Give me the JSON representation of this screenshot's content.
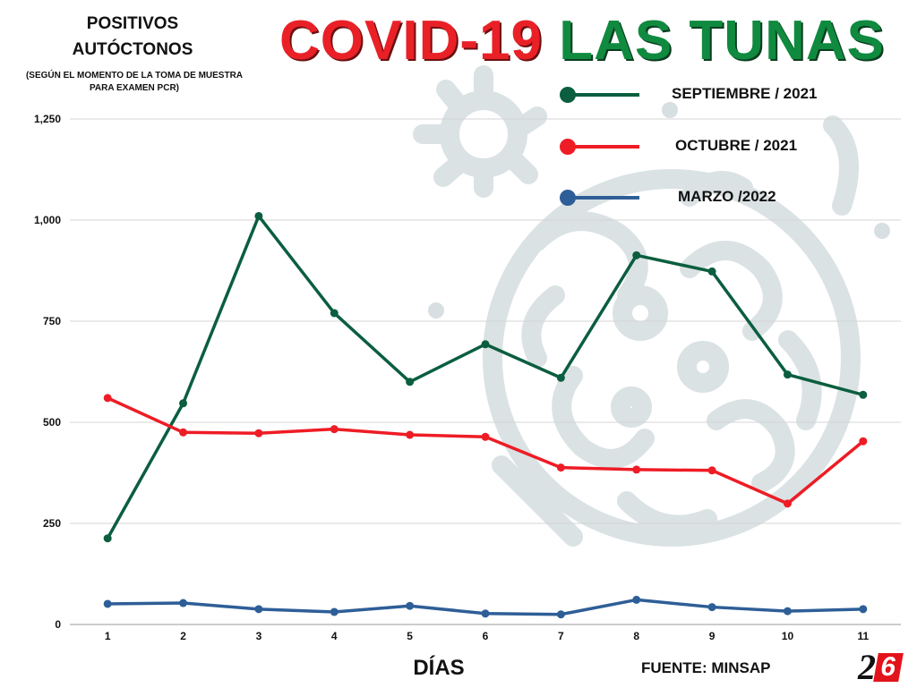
{
  "header": {
    "ylabel_line1": "POSITIVOS",
    "ylabel_line2": "AUTÓCTONOS",
    "ylabel_note_line1": "(SEGÚN EL MOMENTO DE LA TOMA DE MUESTRA",
    "ylabel_note_line2": "PARA EXAMEN PCR)",
    "title_part1": "COVID-19",
    "title_part2": "LAS TUNAS"
  },
  "footer": {
    "xlabel": "DÍAS",
    "source": "FUENTE: MINSAP",
    "logo_left": "2",
    "logo_right": "6"
  },
  "colors": {
    "septiembre": "#0b5e3f",
    "octubre": "#ee1c25",
    "marzo": "#2e5e97",
    "title_red": "#ea2027",
    "title_green": "#0f8a3f",
    "watermark": "#d7dfe2"
  },
  "chart_data": {
    "type": "line",
    "title": "COVID-19 LAS TUNAS",
    "xlabel": "DÍAS",
    "ylabel": "POSITIVOS AUTÓCTONOS",
    "x": [
      1,
      2,
      3,
      4,
      5,
      6,
      7,
      8,
      9,
      10,
      11
    ],
    "ylim": [
      0,
      1250
    ],
    "yticks": [
      0,
      250,
      500,
      750,
      1000,
      1250
    ],
    "ytick_labels": [
      "0",
      "250",
      "500",
      "750",
      "1,000",
      "1,250"
    ],
    "grid": true,
    "legend_position": "top-right",
    "series": [
      {
        "name": "SEPTIEMBRE / 2021",
        "color": "#0b5e3f",
        "values": [
          213,
          547,
          1010,
          770,
          600,
          693,
          610,
          913,
          873,
          618,
          568
        ]
      },
      {
        "name": "OCTUBRE / 2021",
        "color": "#ee1c25",
        "values": [
          560,
          475,
          473,
          483,
          469,
          464,
          388,
          383,
          381,
          299,
          453
        ]
      },
      {
        "name": "MARZO /2022",
        "color": "#2e5e97",
        "values": [
          51,
          53,
          38,
          31,
          46,
          27,
          25,
          61,
          43,
          33,
          38
        ]
      }
    ]
  }
}
